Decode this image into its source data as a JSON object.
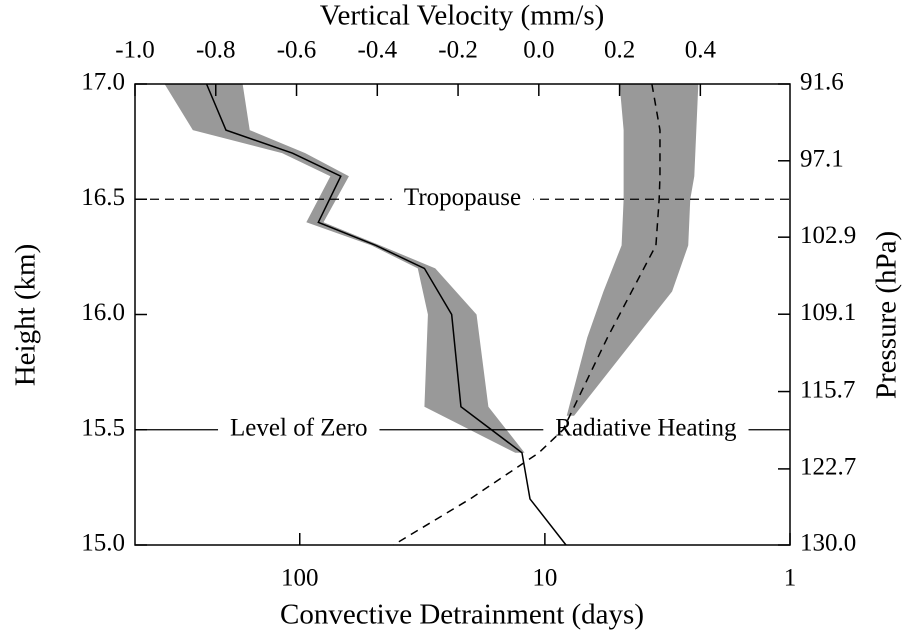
{
  "chart_data": {
    "type": "profile",
    "title": "Vertical Velocity (mm/s)",
    "x_label": "Convective Detrainment (days)",
    "y_label": "Height (km)",
    "y2_label": "Pressure (hPa)",
    "xlim": [
      470,
      1
    ],
    "x_log": true,
    "xticks": [
      100,
      10,
      1
    ],
    "x2lim": [
      -1.0,
      0.622
    ],
    "x2ticks": [
      {
        "value": -1.0,
        "label": "-1.0"
      },
      -0.8,
      -0.6,
      -0.4,
      -0.2,
      {
        "value": 0.0,
        "label": "0.0"
      },
      0.2,
      0.4
    ],
    "ylim": [
      15.0,
      17.0
    ],
    "yticks": [
      {
        "value": 15.0,
        "label": "15.0"
      },
      15.5,
      {
        "value": 16.0,
        "label": "16.0"
      },
      16.5,
      {
        "value": 17.0,
        "label": "17.0"
      }
    ],
    "y2lim": [
      130.0,
      91.6
    ],
    "y2_log": true,
    "y2ticks": [
      {
        "value": 130.0,
        "label": "130.0"
      },
      122.7,
      115.7,
      109.1,
      102.9,
      97.1,
      91.6
    ],
    "band_color": "#999999",
    "series": [
      {
        "axis": "x",
        "color": "#000000",
        "dash": false,
        "y": [
          17.0,
          16.8,
          16.7,
          16.6,
          16.4,
          16.3,
          16.2,
          16.0,
          15.6,
          15.4,
          15.2,
          15.0
        ],
        "values": [
          240,
          200,
          107,
          68,
          84,
          49,
          31,
          24,
          22,
          12.4,
          11.5,
          8.2
        ],
        "band_lower": [
          356,
          273,
          118,
          75,
          94,
          51,
          33,
          30,
          31,
          13.2,
          null,
          null
        ],
        "band_upper": [
          171,
          160,
          95,
          63,
          80,
          47,
          28,
          19,
          17,
          12.1,
          null,
          null
        ]
      },
      {
        "axis": "x2",
        "color": "#000000",
        "dash": true,
        "y": [
          17.0,
          16.8,
          16.6,
          16.5,
          16.3,
          16.1,
          15.9,
          15.5,
          15.4,
          15.2,
          15.0
        ],
        "values": [
          0.28,
          0.3,
          0.3,
          0.298,
          0.29,
          0.23,
          0.17,
          0.06,
          0.0,
          -0.17,
          -0.36
        ],
        "band_lower": [
          0.2,
          0.21,
          0.21,
          0.21,
          0.205,
          0.16,
          0.12,
          0.06,
          null,
          null,
          null
        ],
        "band_upper": [
          0.395,
          0.39,
          0.385,
          0.375,
          0.37,
          0.33,
          0.24,
          0.06,
          null,
          null,
          null
        ]
      }
    ],
    "annotations": [
      {
        "y": 16.5,
        "dash": true,
        "labels": [
          {
            "text": "Tropopause",
            "x": 0.5
          }
        ]
      },
      {
        "y": 15.5,
        "dash": false,
        "labels": [
          {
            "text": "Level of Zero",
            "x": 0.25
          },
          {
            "text": "Radiative Heating",
            "x": 0.78
          }
        ]
      }
    ]
  }
}
